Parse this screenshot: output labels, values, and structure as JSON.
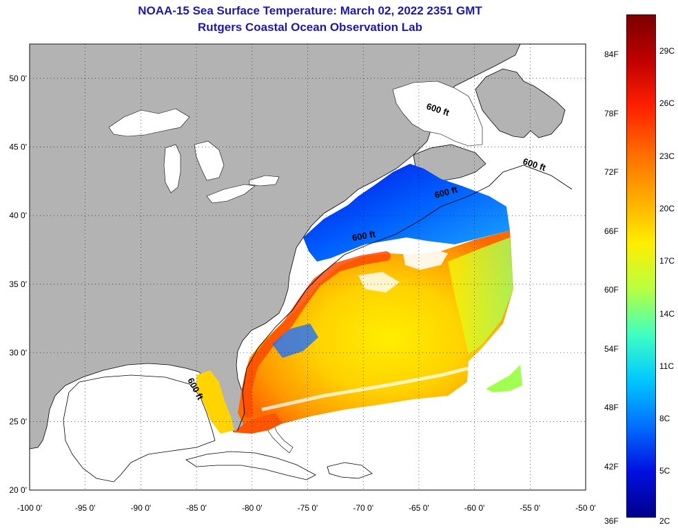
{
  "title": {
    "line1": "NOAA-15 Sea Surface Temperature:  March 02, 2022 2351 GMT",
    "line2": "Rutgers Coastal Ocean Observation Lab"
  },
  "colors": {
    "title": "#1a1aa6",
    "land": "#b3b3b3",
    "ocean_nodata": "#ffffff"
  },
  "map": {
    "lon_ticks": [
      "-100 0'",
      "-95 0'",
      "-90 0'",
      "-85 0'",
      "-80 0'",
      "-75 0'",
      "-70 0'",
      "-65 0'",
      "-60 0'",
      "-55 0'",
      "-50 0'"
    ],
    "lat_ticks": [
      "50 0'",
      "45 0'",
      "40 0'",
      "35 0'",
      "30 0'",
      "25 0'",
      "20 0'"
    ],
    "contour_label": "600 ft",
    "lon_range": [
      -100,
      -50
    ],
    "lat_range": [
      20,
      52.5
    ]
  },
  "colorbar": {
    "f_labels": [
      "84F",
      "78F",
      "72F",
      "66F",
      "60F",
      "54F",
      "48F",
      "42F",
      "36F"
    ],
    "c_labels": [
      "29C",
      "26C",
      "23C",
      "20C",
      "17C",
      "14C",
      "11C",
      "8C",
      "5C",
      "2C"
    ],
    "stops": [
      "#7a0000",
      "#c00000",
      "#ff2000",
      "#ff6a00",
      "#ffaa00",
      "#ffee00",
      "#b8ff40",
      "#40ffc0",
      "#00c8ff",
      "#0070ff",
      "#0010e0",
      "#00008a"
    ]
  }
}
